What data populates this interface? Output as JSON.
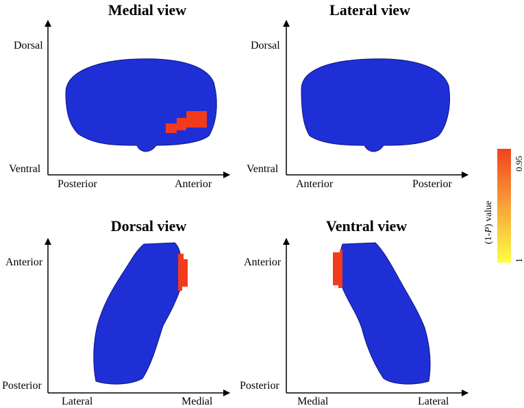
{
  "colors": {
    "region": "#1f2fd6",
    "highlight": "#f23a1c",
    "colorbar_top": "#f2421c",
    "colorbar_bottom": "#ffff44"
  },
  "panels": [
    {
      "title": "Medial view",
      "y_top": "Dorsal",
      "y_bottom": "Ventral",
      "x_left": "Posterior",
      "x_right": "Anterior"
    },
    {
      "title": "Lateral view",
      "y_top": "Dorsal",
      "y_bottom": "Ventral",
      "x_left": "Anterior",
      "x_right": "Posterior"
    },
    {
      "title": "Dorsal view",
      "y_top": "Anterior",
      "y_bottom": "Posterior",
      "x_left": "Lateral",
      "x_right": "Medial"
    },
    {
      "title": "Ventral view",
      "y_top": "Anterior",
      "y_bottom": "Posterior",
      "x_left": "Medial",
      "x_right": "Lateral"
    }
  ],
  "colorbar": {
    "title_prefix": "(1-",
    "title_var": "P",
    "title_suffix": ") value",
    "tick_top": "0.95",
    "tick_bottom": "1"
  }
}
